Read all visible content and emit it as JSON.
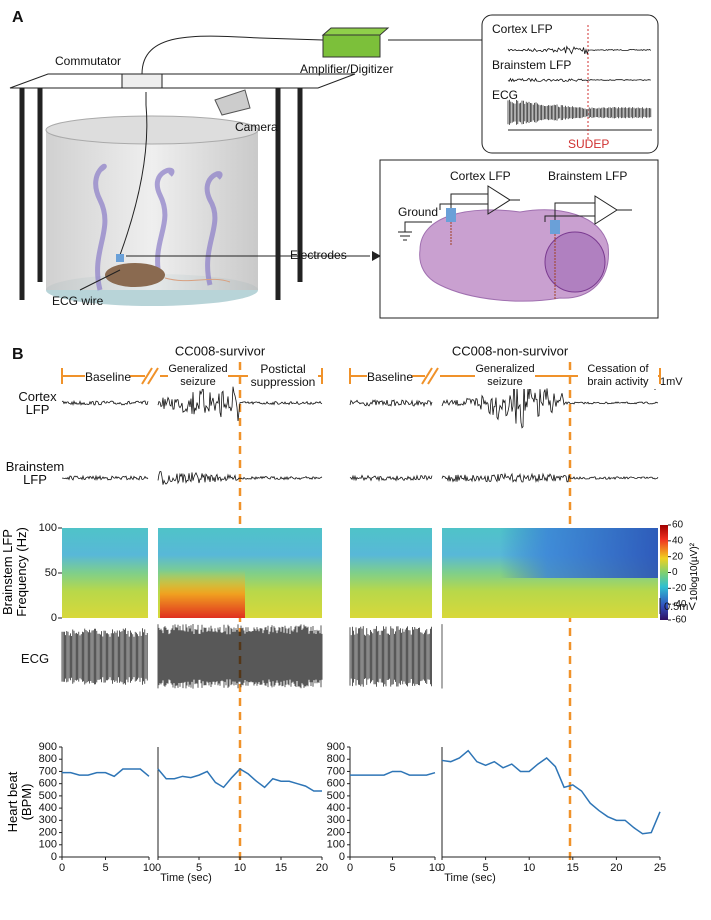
{
  "panel_a": {
    "label": "A",
    "commutator": "Commutator",
    "amplifier": "Amplifier/Digitizer",
    "camera": "Camera",
    "ecg_wire": "ECG wire",
    "electrodes": "Electrodes",
    "ground": "Ground",
    "cortex_lfp": "Cortex LFP",
    "brainstem_lfp": "Brainstem LFP",
    "inset": {
      "cortex": "Cortex LFP",
      "brainstem": "Brainstem LFP",
      "ecg": "ECG",
      "sudep": "SUDEP"
    }
  },
  "panel_b": {
    "label": "B",
    "survivor": {
      "title": "CC008-survivor",
      "baseline": "Baseline",
      "seizure": "Generalized seizure",
      "postictal": "Postictal suppression"
    },
    "non_survivor": {
      "title": "CC008-non-survivor",
      "baseline": "Baseline",
      "seizure": "Generalized seizure",
      "cessation": "Cessation of brain activity"
    },
    "row_labels": {
      "cortex": "Cortex LFP",
      "brainstem": "Brainstem LFP",
      "spectrogram": "Brainstem LFP Frequency (Hz)",
      "ecg": "ECG"
    },
    "scale_1mv": "1mV",
    "scale_05mv": "0.5mV"
  },
  "spectrogram": {
    "ylim": [
      0,
      100
    ],
    "yticks": [
      0,
      50,
      100
    ],
    "colorbar": {
      "label": "10log10(µV)²",
      "clim": [
        -60,
        60
      ],
      "ticks": [
        60,
        40,
        20,
        0,
        -20,
        -40,
        -60
      ]
    }
  },
  "chart_data": [
    {
      "type": "line",
      "ylabel": "Heart beat (BPM)",
      "color": "#2e75b6",
      "x": [
        0,
        1,
        2,
        3,
        4,
        5,
        6,
        7,
        8,
        9,
        10
      ],
      "values": [
        690,
        690,
        670,
        670,
        690,
        690,
        660,
        720,
        720,
        720,
        660
      ],
      "xlim": [
        0,
        10
      ],
      "xticks": [
        0,
        5,
        10
      ],
      "ylim": [
        0,
        900
      ],
      "yticks": [
        0,
        100,
        200,
        300,
        400,
        500,
        600,
        700,
        800,
        900
      ]
    },
    {
      "type": "line",
      "xlabel": "Time (sec)",
      "color": "#2e75b6",
      "x": [
        0,
        1,
        2,
        3,
        4,
        5,
        6,
        7,
        8,
        9,
        10,
        11,
        12,
        13,
        14,
        15,
        16,
        17,
        18,
        19,
        20
      ],
      "values": [
        720,
        640,
        640,
        660,
        650,
        670,
        700,
        610,
        570,
        650,
        720,
        680,
        620,
        570,
        640,
        620,
        620,
        600,
        580,
        540,
        540
      ],
      "xlim": [
        0,
        20
      ],
      "xticks": [
        0,
        5,
        10,
        15,
        20
      ],
      "ylim": [
        0,
        900
      ]
    },
    {
      "type": "line",
      "color": "#2e75b6",
      "x": [
        0,
        1,
        2,
        3,
        4,
        5,
        6,
        7,
        8,
        9,
        10
      ],
      "values": [
        670,
        670,
        670,
        670,
        670,
        700,
        700,
        670,
        670,
        670,
        690
      ],
      "xlim": [
        0,
        10
      ],
      "xticks": [
        0,
        5,
        10
      ],
      "ylim": [
        0,
        900
      ],
      "yticks": [
        0,
        100,
        200,
        300,
        400,
        500,
        600,
        700,
        800,
        900
      ]
    },
    {
      "type": "line",
      "xlabel": "Time (sec)",
      "color": "#2e75b6",
      "x": [
        0,
        1,
        2,
        3,
        4,
        5,
        6,
        7,
        8,
        9,
        10,
        11,
        12,
        13,
        14,
        15,
        16,
        17,
        18,
        19,
        20,
        21,
        22,
        23,
        24,
        25
      ],
      "values": [
        790,
        780,
        810,
        870,
        780,
        750,
        780,
        730,
        760,
        700,
        700,
        760,
        810,
        740,
        570,
        590,
        540,
        440,
        380,
        330,
        300,
        300,
        240,
        190,
        200,
        370
      ],
      "xlim": [
        0,
        25
      ],
      "xticks": [
        0,
        5,
        10,
        15,
        20,
        25
      ],
      "ylim": [
        0,
        900
      ]
    }
  ]
}
